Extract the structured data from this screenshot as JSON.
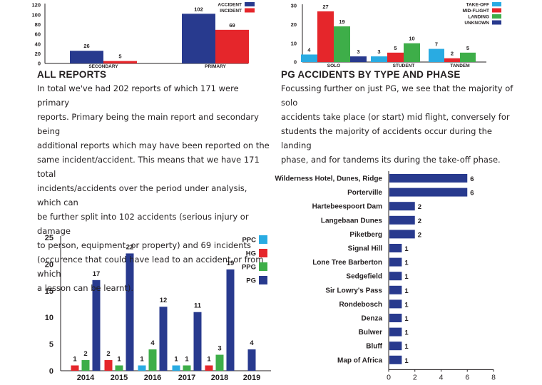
{
  "colors": {
    "navy": "#283a8e",
    "red": "#e5262b",
    "green": "#3eae49",
    "cyan": "#29abe2",
    "axis": "#231f20"
  },
  "text": {
    "all_reports": {
      "heading": "ALL REPORTS",
      "lines": [
        "In total we've had 202 reports of which 171 were primary",
        "reports. Primary being the main report and secondary being",
        "additional reports which may have been reported on the",
        "same incident/accident. This means that we have 171 total",
        "incidents/accidents over the period under analysis, which can",
        "be further split into 102 accidents (serious injury or damage",
        "to person, equipment, or property) and 69 incidents",
        "(occurence that could have lead to an accident or from which",
        "a lesson can be learnt)."
      ]
    },
    "pg_accidents": {
      "heading": "PG ACCIDENTS BY TYPE AND PHASE",
      "lines": [
        "Focussing further on just PG, we see that the majority of solo",
        "accidents take place (or start) mid flight, conversely for",
        "students the majority of accidents occur during the landing",
        "phase, and for tandems its during the take-off phase."
      ]
    }
  },
  "chart_data": [
    {
      "id": "reports",
      "type": "bar",
      "categories": [
        "SECONDARY",
        "PRIMARY"
      ],
      "series": [
        {
          "name": "ACCIDENT",
          "color": "navy",
          "values": [
            26,
            102
          ]
        },
        {
          "name": "INCIDENT",
          "color": "red",
          "values": [
            5,
            69
          ]
        }
      ],
      "ylim": [
        0,
        120
      ],
      "yticks": [
        0,
        20,
        40,
        60,
        80,
        100,
        120
      ],
      "grid": false,
      "legend": "top-right"
    },
    {
      "id": "pg_phase",
      "type": "bar",
      "categories": [
        "SOLO",
        "STUDENT",
        "TANDEM"
      ],
      "series": [
        {
          "name": "TAKE-OFF",
          "color": "cyan",
          "values": [
            4,
            3,
            7
          ]
        },
        {
          "name": "MID-FLIGHT",
          "color": "red",
          "values": [
            27,
            5,
            2
          ]
        },
        {
          "name": "LANDING",
          "color": "green",
          "values": [
            19,
            10,
            5
          ]
        },
        {
          "name": "UNKNOWN",
          "color": "navy",
          "values": [
            3,
            null,
            null
          ]
        }
      ],
      "ylim": [
        0,
        30
      ],
      "yticks": [
        0,
        10,
        20,
        30
      ],
      "grid": false,
      "legend": "top-right"
    },
    {
      "id": "yearly",
      "type": "bar",
      "categories": [
        "2014",
        "2015",
        "2016",
        "2017",
        "2018",
        "2019"
      ],
      "series": [
        {
          "name": "PPC",
          "color": "cyan",
          "values": [
            null,
            null,
            1,
            1,
            null,
            null
          ]
        },
        {
          "name": "HG",
          "color": "red",
          "values": [
            1,
            2,
            null,
            null,
            1,
            null
          ]
        },
        {
          "name": "PPG",
          "color": "green",
          "values": [
            2,
            1,
            4,
            1,
            3,
            null
          ]
        },
        {
          "name": "PG",
          "color": "navy",
          "values": [
            17,
            22,
            12,
            11,
            19,
            4
          ]
        }
      ],
      "ylim": [
        0,
        25
      ],
      "yticks": [
        0,
        5,
        10,
        15,
        20,
        25
      ],
      "grid": false,
      "legend": "right"
    },
    {
      "id": "sites",
      "type": "bar",
      "orientation": "horizontal",
      "categories": [
        "Wilderness Hotel, Dunes, Ridge",
        "Porterville",
        "Hartebeespoort Dam",
        "Langebaan Dunes",
        "Piketberg",
        "Signal Hill",
        "Lone Tree Barberton",
        "Sedgefield",
        "Sir Lowry's Pass",
        "Rondebosch",
        "Denza",
        "Bulwer",
        "Bluff",
        "Map of Africa"
      ],
      "values": [
        6,
        6,
        2,
        2,
        2,
        1,
        1,
        1,
        1,
        1,
        1,
        1,
        1,
        1
      ],
      "color": "navy",
      "xlim": [
        0,
        8
      ],
      "xticks": [
        0,
        2,
        4,
        6,
        8
      ],
      "grid": false
    }
  ]
}
